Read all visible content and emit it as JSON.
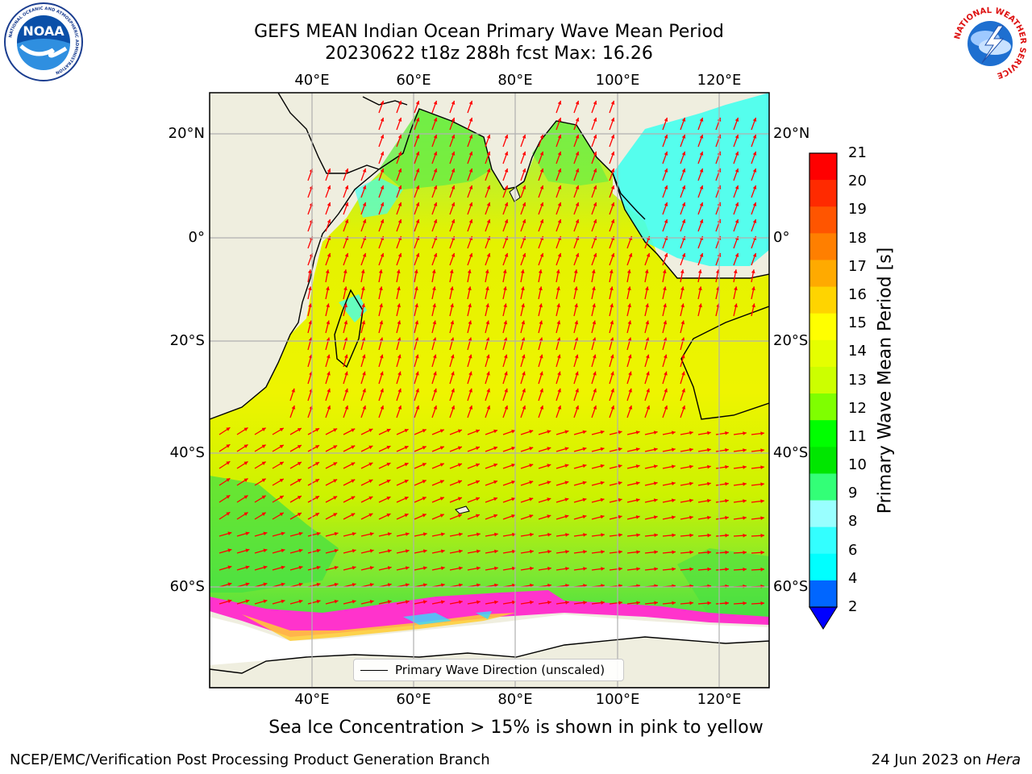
{
  "header": {
    "title_line1": "GEFS MEAN Indian Ocean Primary Wave Mean Period",
    "title_line2": "20230622 t18z 288h fcst   Max: 16.26"
  },
  "logos": {
    "left": {
      "name": "NOAA",
      "ring_text": "NATIONAL OCEANIC AND ATMOSPHERIC ADMINISTRATION",
      "bottom_text": "U.S. DEPARTMENT OF COMMERCE"
    },
    "right": {
      "name": "NATIONAL WEATHER SERVICE"
    }
  },
  "map": {
    "lon_labels_top": [
      "40°E",
      "60°E",
      "80°E",
      "100°E",
      "120°E"
    ],
    "lon_labels_bottom": [
      "40°E",
      "60°E",
      "80°E",
      "100°E",
      "120°E"
    ],
    "lat_labels_left": [
      "20°N",
      "0°",
      "20°S",
      "40°S",
      "60°S"
    ],
    "lat_labels_right": [
      "20°N",
      "0°",
      "20°S",
      "40°S",
      "60°S"
    ],
    "legend_label": "Primary Wave Direction (unscaled)",
    "colors": {
      "land": "#efeedf",
      "sea_ice_area": "#ffffff",
      "arrow": "#ff0000",
      "grid": "#b0b0b0"
    }
  },
  "colorbar": {
    "label": "Primary Wave Mean Period [s]",
    "ticks": [
      "21",
      "20",
      "19",
      "18",
      "17",
      "16",
      "15",
      "14",
      "13",
      "12",
      "11",
      "10",
      "9",
      "8",
      "6",
      "4",
      "2"
    ],
    "colors": [
      "#ff0000",
      "#ff2a00",
      "#ff5500",
      "#ff7f00",
      "#ffaa00",
      "#ffd400",
      "#ffff00",
      "#e5ff00",
      "#ccff00",
      "#7fff00",
      "#00ff00",
      "#00e600",
      "#33ff77",
      "#99ffff",
      "#33ffff",
      "#00ffff",
      "#0066ff"
    ],
    "extend_color": "#0000ff"
  },
  "caption": "Sea Ice Concentration > 15% is shown in pink to yellow",
  "footer": {
    "left": "NCEP/EMC/Verification Post Processing Product Generation Branch",
    "right_prefix": "24 Jun 2023 on ",
    "right_host": "Hera"
  }
}
